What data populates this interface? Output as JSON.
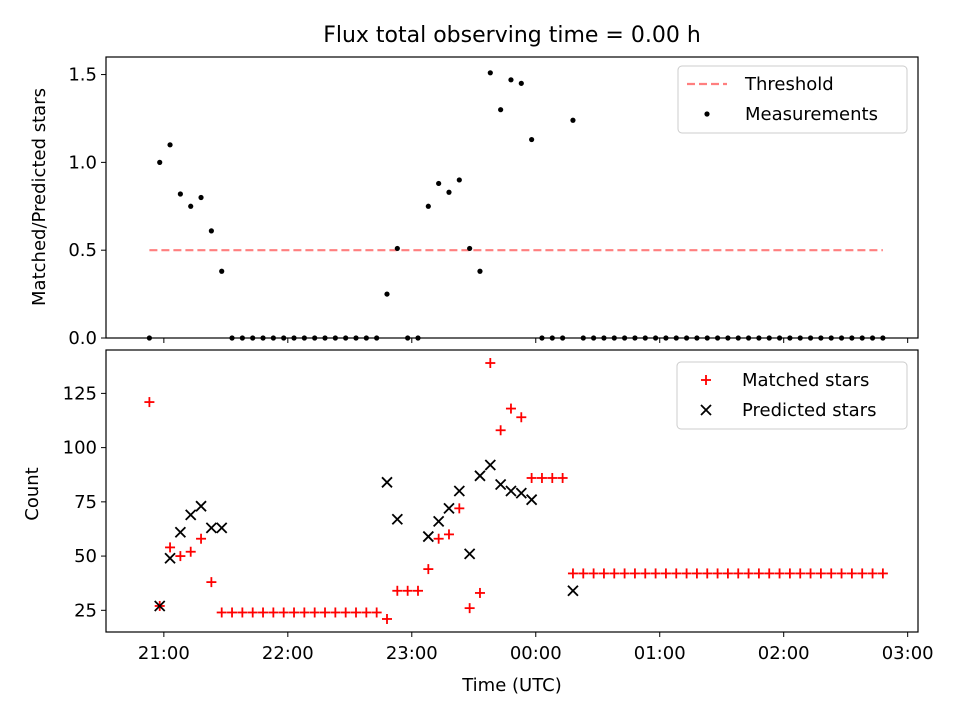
{
  "chart_data": [
    {
      "type": "scatter",
      "title": "Flux total observing time = 0.00 h",
      "ylabel": "Matched/Predicted stars",
      "ylim": [
        0,
        1.6
      ],
      "yticks": [
        "0.0",
        "0.5",
        "1.0",
        "1.5"
      ],
      "ytick_values": [
        0,
        0.5,
        1.0,
        1.5
      ],
      "legend": "top-right",
      "threshold": {
        "name": "Threshold",
        "value": 0.5,
        "x_range": [
          "20:53",
          "02:48"
        ],
        "color": "#ff7f7f",
        "style": "dashed"
      },
      "series": [
        {
          "name": "Measurements",
          "marker": "dot",
          "color": "#000000",
          "points": [
            [
              "20:53",
              0
            ],
            [
              "20:58",
              1.0
            ],
            [
              "21:03",
              1.1
            ],
            [
              "21:08",
              0.82
            ],
            [
              "21:13",
              0.75
            ],
            [
              "21:18",
              0.8
            ],
            [
              "21:23",
              0.61
            ],
            [
              "21:28",
              0.38
            ],
            [
              "21:33",
              0
            ],
            [
              "21:38",
              0
            ],
            [
              "21:43",
              0
            ],
            [
              "21:48",
              0
            ],
            [
              "21:53",
              0
            ],
            [
              "21:58",
              0
            ],
            [
              "22:03",
              0
            ],
            [
              "22:08",
              0
            ],
            [
              "22:13",
              0
            ],
            [
              "22:18",
              0
            ],
            [
              "22:23",
              0
            ],
            [
              "22:28",
              0
            ],
            [
              "22:33",
              0
            ],
            [
              "22:38",
              0
            ],
            [
              "22:43",
              0
            ],
            [
              "22:48",
              0.25
            ],
            [
              "22:53",
              0.51
            ],
            [
              "22:58",
              0
            ],
            [
              "23:03",
              0
            ],
            [
              "23:08",
              0.75
            ],
            [
              "23:13",
              0.88
            ],
            [
              "23:18",
              0.83
            ],
            [
              "23:23",
              0.9
            ],
            [
              "23:28",
              0.51
            ],
            [
              "23:33",
              0.38
            ],
            [
              "23:38",
              1.51
            ],
            [
              "23:43",
              1.3
            ],
            [
              "23:48",
              1.47
            ],
            [
              "23:53",
              1.45
            ],
            [
              "23:58",
              1.13
            ],
            [
              "00:03",
              0
            ],
            [
              "00:08",
              0
            ],
            [
              "00:13",
              0
            ],
            [
              "00:18",
              1.24
            ],
            [
              "00:23",
              0
            ],
            [
              "00:28",
              0
            ],
            [
              "00:33",
              0
            ],
            [
              "00:38",
              0
            ],
            [
              "00:43",
              0
            ],
            [
              "00:48",
              0
            ],
            [
              "00:53",
              0
            ],
            [
              "00:58",
              0
            ],
            [
              "01:03",
              0
            ],
            [
              "01:08",
              0
            ],
            [
              "01:13",
              0
            ],
            [
              "01:18",
              0
            ],
            [
              "01:23",
              0
            ],
            [
              "01:28",
              0
            ],
            [
              "01:33",
              0
            ],
            [
              "01:38",
              0
            ],
            [
              "01:43",
              0
            ],
            [
              "01:48",
              0
            ],
            [
              "01:53",
              0
            ],
            [
              "01:58",
              0
            ],
            [
              "02:03",
              0
            ],
            [
              "02:08",
              0
            ],
            [
              "02:13",
              0
            ],
            [
              "02:18",
              0
            ],
            [
              "02:23",
              0
            ],
            [
              "02:28",
              0
            ],
            [
              "02:33",
              0
            ],
            [
              "02:38",
              0
            ],
            [
              "02:43",
              0
            ],
            [
              "02:48",
              0
            ]
          ]
        }
      ]
    },
    {
      "type": "scatter",
      "xlabel": "Time (UTC)",
      "ylabel": "Count",
      "ylim": [
        15,
        145
      ],
      "yticks": [
        "25",
        "50",
        "75",
        "100",
        "125"
      ],
      "ytick_values": [
        25,
        50,
        75,
        100,
        125
      ],
      "xlim": [
        "20:32",
        "03:05"
      ],
      "xticks": [
        "21:00",
        "22:00",
        "23:00",
        "00:00",
        "01:00",
        "02:00",
        "03:00"
      ],
      "legend": "top-right",
      "series": [
        {
          "name": "Matched stars",
          "marker": "plus",
          "color": "#ff0000",
          "points": [
            [
              "20:53",
              121
            ],
            [
              "20:58",
              27
            ],
            [
              "21:03",
              54
            ],
            [
              "21:08",
              50
            ],
            [
              "21:13",
              52
            ],
            [
              "21:18",
              58
            ],
            [
              "21:23",
              38
            ],
            [
              "21:28",
              24
            ],
            [
              "21:33",
              24
            ],
            [
              "21:38",
              24
            ],
            [
              "21:43",
              24
            ],
            [
              "21:48",
              24
            ],
            [
              "21:53",
              24
            ],
            [
              "21:58",
              24
            ],
            [
              "22:03",
              24
            ],
            [
              "22:08",
              24
            ],
            [
              "22:13",
              24
            ],
            [
              "22:18",
              24
            ],
            [
              "22:23",
              24
            ],
            [
              "22:28",
              24
            ],
            [
              "22:33",
              24
            ],
            [
              "22:38",
              24
            ],
            [
              "22:43",
              24
            ],
            [
              "22:48",
              21
            ],
            [
              "22:53",
              34
            ],
            [
              "22:58",
              34
            ],
            [
              "23:03",
              34
            ],
            [
              "23:08",
              44
            ],
            [
              "23:13",
              58
            ],
            [
              "23:18",
              60
            ],
            [
              "23:23",
              72
            ],
            [
              "23:28",
              26
            ],
            [
              "23:33",
              33
            ],
            [
              "23:38",
              139
            ],
            [
              "23:43",
              108
            ],
            [
              "23:48",
              118
            ],
            [
              "23:53",
              114
            ],
            [
              "23:58",
              86
            ],
            [
              "00:03",
              86
            ],
            [
              "00:08",
              86
            ],
            [
              "00:13",
              86
            ],
            [
              "00:18",
              42
            ],
            [
              "00:23",
              42
            ],
            [
              "00:28",
              42
            ],
            [
              "00:33",
              42
            ],
            [
              "00:38",
              42
            ],
            [
              "00:43",
              42
            ],
            [
              "00:48",
              42
            ],
            [
              "00:53",
              42
            ],
            [
              "00:58",
              42
            ],
            [
              "01:03",
              42
            ],
            [
              "01:08",
              42
            ],
            [
              "01:13",
              42
            ],
            [
              "01:18",
              42
            ],
            [
              "01:23",
              42
            ],
            [
              "01:28",
              42
            ],
            [
              "01:33",
              42
            ],
            [
              "01:38",
              42
            ],
            [
              "01:43",
              42
            ],
            [
              "01:48",
              42
            ],
            [
              "01:53",
              42
            ],
            [
              "01:58",
              42
            ],
            [
              "02:03",
              42
            ],
            [
              "02:08",
              42
            ],
            [
              "02:13",
              42
            ],
            [
              "02:18",
              42
            ],
            [
              "02:23",
              42
            ],
            [
              "02:28",
              42
            ],
            [
              "02:33",
              42
            ],
            [
              "02:38",
              42
            ],
            [
              "02:43",
              42
            ],
            [
              "02:48",
              42
            ]
          ]
        },
        {
          "name": "Predicted stars",
          "marker": "x",
          "color": "#000000",
          "points": [
            [
              "20:58",
              27
            ],
            [
              "21:03",
              49
            ],
            [
              "21:08",
              61
            ],
            [
              "21:13",
              69
            ],
            [
              "21:18",
              73
            ],
            [
              "21:23",
              63
            ],
            [
              "21:28",
              63
            ],
            [
              "22:48",
              84
            ],
            [
              "22:53",
              67
            ],
            [
              "23:08",
              59
            ],
            [
              "23:13",
              66
            ],
            [
              "23:18",
              72
            ],
            [
              "23:23",
              80
            ],
            [
              "23:28",
              51
            ],
            [
              "23:33",
              87
            ],
            [
              "23:38",
              92
            ],
            [
              "23:43",
              83
            ],
            [
              "23:48",
              80
            ],
            [
              "23:53",
              79
            ],
            [
              "23:58",
              76
            ],
            [
              "00:18",
              34
            ]
          ]
        }
      ]
    }
  ]
}
